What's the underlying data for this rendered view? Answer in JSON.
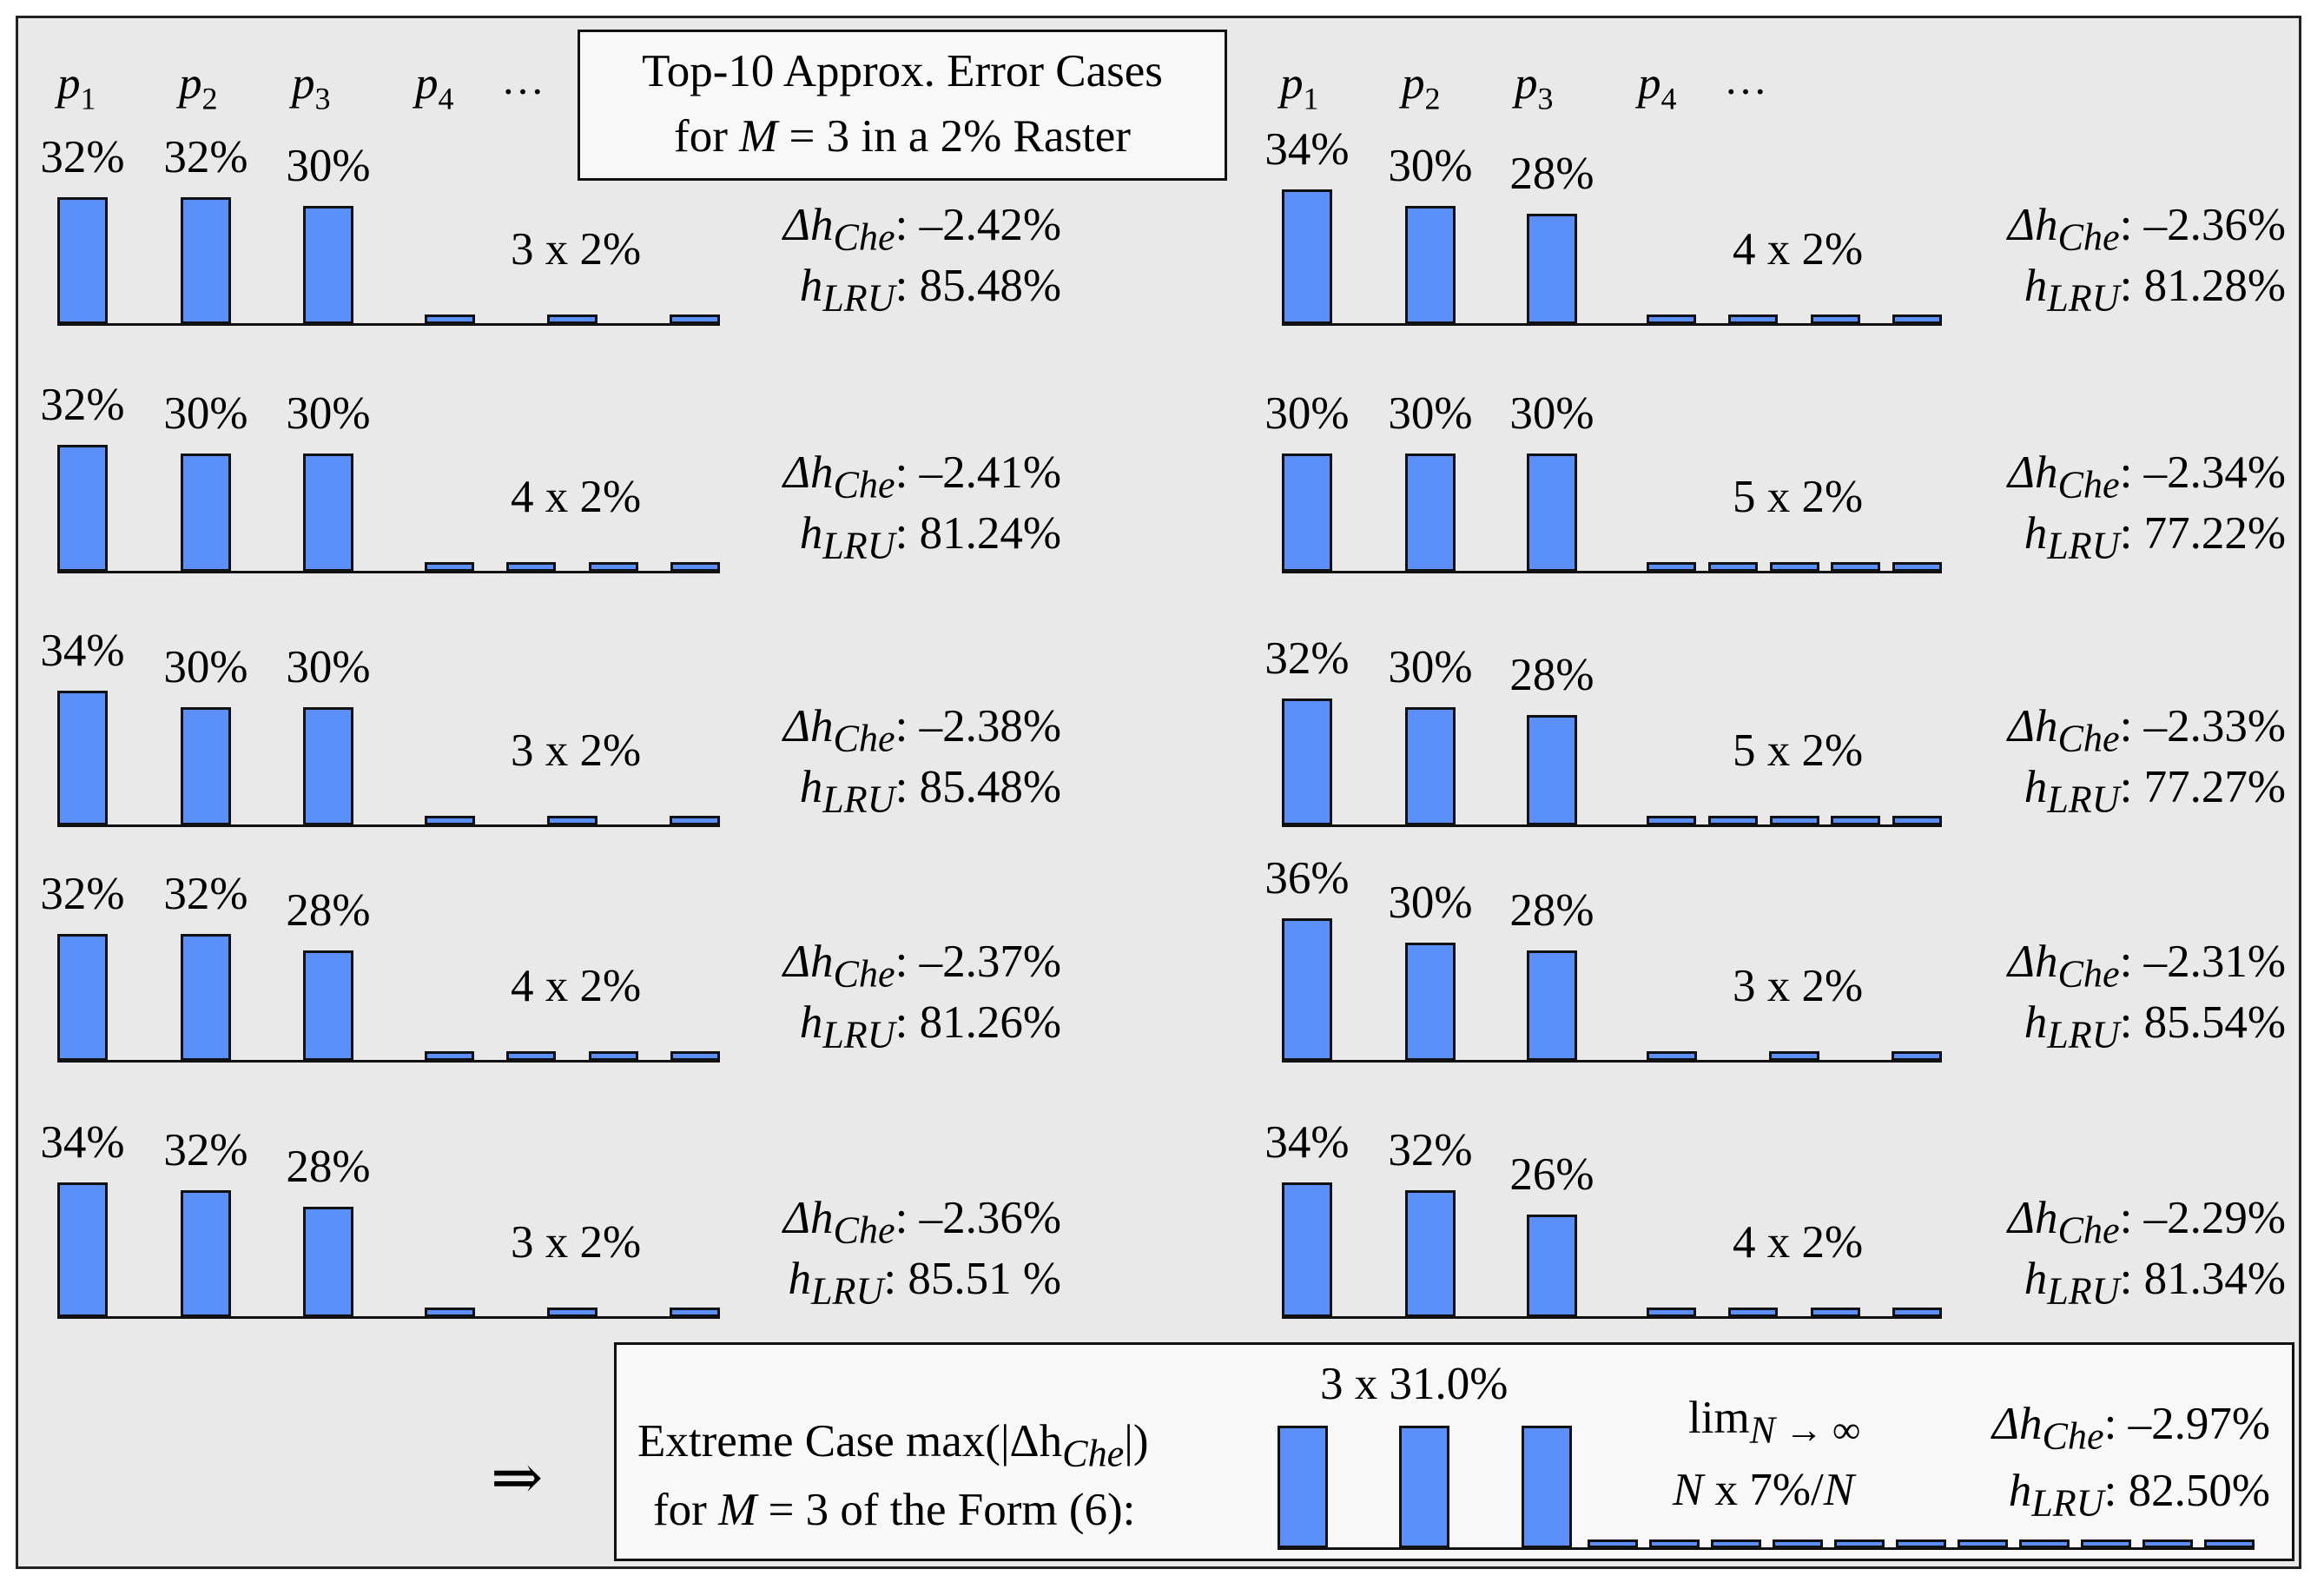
{
  "chart_data": {
    "type": "bar",
    "title": "Top-10 Approx. Error Cases for M = 3 in a 2% Raster",
    "title_line1": "Top-10 Approx. Error Cases",
    "title_line2_pre": "for ",
    "title_line2_var": "M",
    "title_line2_post": " = 3 in a 2% Raster",
    "series_labels": [
      "p",
      "p",
      "p",
      "p",
      "…"
    ],
    "series_subscripts": [
      "1",
      "2",
      "3",
      "4",
      ""
    ],
    "delta_label_sym": "Δh",
    "delta_label_sub": "Che",
    "hlru_label_sym": "h",
    "hlru_label_sub": "LRU",
    "cases": [
      {
        "top": [
          32,
          32,
          30
        ],
        "top_labels": [
          "32%",
          "32%",
          "30%"
        ],
        "tail_count": 3,
        "tail_value": 2,
        "tail_label": "3 x 2%",
        "delta_h_che": ": –2.42%",
        "h_lru": ": 85.48%"
      },
      {
        "top": [
          32,
          30,
          30
        ],
        "top_labels": [
          "32%",
          "30%",
          "30%"
        ],
        "tail_count": 4,
        "tail_value": 2,
        "tail_label": "4 x 2%",
        "delta_h_che": ": –2.41%",
        "h_lru": ": 81.24%"
      },
      {
        "top": [
          34,
          30,
          30
        ],
        "top_labels": [
          "34%",
          "30%",
          "30%"
        ],
        "tail_count": 3,
        "tail_value": 2,
        "tail_label": "3 x 2%",
        "delta_h_che": ": –2.38%",
        "h_lru": ": 85.48%"
      },
      {
        "top": [
          32,
          32,
          28
        ],
        "top_labels": [
          "32%",
          "32%",
          "28%"
        ],
        "tail_count": 4,
        "tail_value": 2,
        "tail_label": "4 x 2%",
        "delta_h_che": ": –2.37%",
        "h_lru": ": 81.26%"
      },
      {
        "top": [
          34,
          32,
          28
        ],
        "top_labels": [
          "34%",
          "32%",
          "28%"
        ],
        "tail_count": 3,
        "tail_value": 2,
        "tail_label": "3 x 2%",
        "delta_h_che": ": –2.36%",
        "h_lru": ": 85.51 %"
      },
      {
        "top": [
          34,
          30,
          28
        ],
        "top_labels": [
          "34%",
          "30%",
          "28%"
        ],
        "tail_count": 4,
        "tail_value": 2,
        "tail_label": "4 x 2%",
        "delta_h_che": ": –2.36%",
        "h_lru": ": 81.28%"
      },
      {
        "top": [
          30,
          30,
          30
        ],
        "top_labels": [
          "30%",
          "30%",
          "30%"
        ],
        "tail_count": 5,
        "tail_value": 2,
        "tail_label": "5 x 2%",
        "delta_h_che": ": –2.34%",
        "h_lru": ": 77.22%"
      },
      {
        "top": [
          32,
          30,
          28
        ],
        "top_labels": [
          "32%",
          "30%",
          "28%"
        ],
        "tail_count": 5,
        "tail_value": 2,
        "tail_label": "5 x 2%",
        "delta_h_che": ": –2.33%",
        "h_lru": ": 77.27%"
      },
      {
        "top": [
          36,
          30,
          28
        ],
        "top_labels": [
          "36%",
          "30%",
          "28%"
        ],
        "tail_count": 3,
        "tail_value": 2,
        "tail_label": "3 x 2%",
        "delta_h_che": ": –2.31%",
        "h_lru": ": 85.54%"
      },
      {
        "top": [
          34,
          32,
          26
        ],
        "top_labels": [
          "34%",
          "32%",
          "26%"
        ],
        "tail_count": 4,
        "tail_value": 2,
        "tail_label": "4 x 2%",
        "delta_h_che": ": –2.29%",
        "h_lru": ": 81.34%"
      }
    ],
    "extreme_case": {
      "arrow": "⇒",
      "line1_pre": "Extreme Case max(|Δh",
      "line1_sub": "Che",
      "line1_post": "|)",
      "line2_pre": "for ",
      "line2_var": "M",
      "line2_post": " = 3 of the Form (6):",
      "top": [
        31,
        31,
        31
      ],
      "top_label": "3 x 31.0%",
      "tail_bars_shown": 11,
      "lim_text": "lim",
      "lim_sub": "N → ∞",
      "tail_pre": "N",
      "tail_mid": " x 7%/",
      "tail_post": "N",
      "delta_h_che": ": –2.97%",
      "h_lru": ": 82.50%"
    }
  }
}
